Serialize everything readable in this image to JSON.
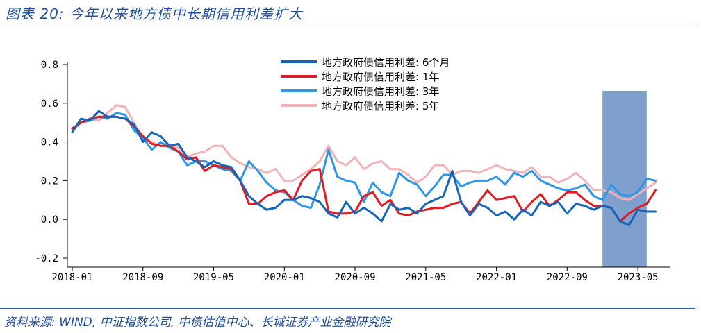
{
  "title": "图表 20:  今年以来地方债中长期信用利差扩大",
  "source": "资料来源: WIND, 中证指数公司, 中债估值中心、长城证券产业金融研究院",
  "chart_data": {
    "type": "line",
    "x_start": "2018-01",
    "x_tick_labels": [
      "2018-01",
      "2018-09",
      "2019-05",
      "2020-01",
      "2020-09",
      "2021-05",
      "2022-01",
      "2022-09",
      "2023-05"
    ],
    "y_tick_labels": [
      "0.8",
      "0.6",
      "0.4",
      "0.2",
      "0.0",
      "-0.2"
    ],
    "ylim": [
      -0.2,
      0.8
    ],
    "y_ticks": [
      0.8,
      0.6,
      0.4,
      0.2,
      0.0,
      -0.2
    ],
    "shaded_region": [
      "2023-01",
      "2023-06"
    ],
    "shaded_color": "#7f9fcc",
    "legend_position": "top-center",
    "series": [
      {
        "name": "地方政府债信用利差: 6个月",
        "color": "#1566b8",
        "values": [
          0.45,
          0.52,
          0.51,
          0.56,
          0.53,
          0.53,
          0.52,
          0.49,
          0.4,
          0.45,
          0.43,
          0.38,
          0.39,
          0.32,
          0.3,
          0.27,
          0.3,
          0.28,
          0.27,
          0.2,
          0.12,
          0.08,
          0.05,
          0.06,
          0.1,
          0.1,
          0.12,
          0.11,
          0.09,
          0.03,
          0.01,
          0.09,
          0.03,
          0.06,
          0.03,
          -0.01,
          0.08,
          0.05,
          0.06,
          0.03,
          0.08,
          0.1,
          0.12,
          0.25,
          0.09,
          0.02,
          0.08,
          0.06,
          0.02,
          0.04,
          0.0,
          0.05,
          0.02,
          0.09,
          0.07,
          0.09,
          0.03,
          0.08,
          0.07,
          0.05,
          0.07,
          0.06,
          -0.01,
          -0.03,
          0.05,
          0.04,
          0.04
        ]
      },
      {
        "name": "地方政府债信用利差: 1年",
        "color": "#e01b22",
        "values": [
          0.47,
          0.5,
          0.52,
          0.53,
          0.53,
          0.53,
          0.52,
          0.48,
          0.43,
          0.39,
          0.38,
          0.38,
          0.35,
          0.31,
          0.32,
          0.25,
          0.28,
          0.27,
          0.26,
          0.2,
          0.08,
          0.08,
          0.12,
          0.14,
          0.15,
          0.1,
          0.2,
          0.25,
          0.26,
          0.04,
          0.03,
          0.03,
          0.04,
          0.12,
          0.14,
          0.07,
          0.1,
          0.03,
          0.02,
          0.04,
          0.05,
          0.06,
          0.06,
          0.08,
          0.09,
          0.03,
          0.09,
          0.15,
          0.1,
          0.11,
          0.12,
          0.04,
          0.09,
          0.13,
          0.07,
          0.1,
          0.14,
          0.14,
          0.1,
          0.07,
          0.07,
          0.06,
          -0.01,
          0.03,
          0.06,
          0.08,
          0.15
        ]
      },
      {
        "name": "地方政府债信用利差: 3年",
        "color": "#2f96e6",
        "values": [
          0.47,
          0.5,
          0.51,
          0.53,
          0.52,
          0.55,
          0.54,
          0.46,
          0.42,
          0.36,
          0.4,
          0.37,
          0.35,
          0.28,
          0.3,
          0.3,
          0.28,
          0.26,
          0.25,
          0.2,
          0.3,
          0.25,
          0.19,
          0.15,
          0.14,
          0.1,
          0.07,
          0.06,
          0.18,
          0.36,
          0.22,
          0.2,
          0.19,
          0.09,
          0.19,
          0.14,
          0.12,
          0.24,
          0.2,
          0.18,
          0.12,
          0.17,
          0.23,
          0.23,
          0.17,
          0.19,
          0.2,
          0.2,
          0.22,
          0.18,
          0.24,
          0.22,
          0.25,
          0.2,
          0.18,
          0.16,
          0.15,
          0.16,
          0.18,
          0.12,
          0.1,
          0.18,
          0.13,
          0.12,
          0.14,
          0.21,
          0.2
        ]
      },
      {
        "name": "地方政府债信用利差: 5年",
        "color": "#f2b3b7",
        "values": [
          0.46,
          0.5,
          0.52,
          0.51,
          0.55,
          0.59,
          0.58,
          0.5,
          0.42,
          0.4,
          0.38,
          0.38,
          0.37,
          0.32,
          0.34,
          0.35,
          0.38,
          0.38,
          0.32,
          0.29,
          0.27,
          0.26,
          0.24,
          0.26,
          0.2,
          0.2,
          0.23,
          0.26,
          0.3,
          0.38,
          0.3,
          0.28,
          0.32,
          0.26,
          0.29,
          0.3,
          0.26,
          0.26,
          0.23,
          0.19,
          0.22,
          0.28,
          0.28,
          0.23,
          0.25,
          0.25,
          0.24,
          0.26,
          0.28,
          0.26,
          0.25,
          0.24,
          0.27,
          0.22,
          0.22,
          0.19,
          0.21,
          0.24,
          0.2,
          0.15,
          0.15,
          0.14,
          0.11,
          0.1,
          0.13,
          0.16,
          0.19
        ]
      }
    ]
  }
}
